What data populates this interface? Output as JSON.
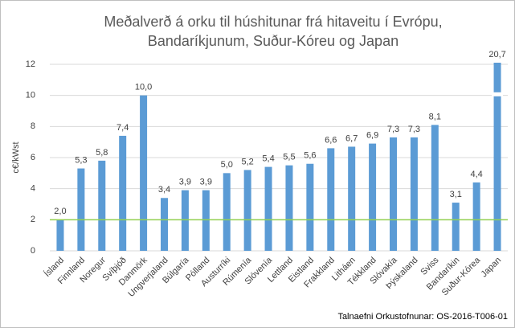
{
  "chart_data": {
    "type": "bar",
    "title": [
      "Meðalverð á orku til húshitunar frá hitaveitu í Evrópu,",
      "Bandaríkjunum, Suður-Kóreu og Japan"
    ],
    "y_label": "c€/kWst",
    "source": "Talnaefni Orkustofnunar: OS-2016-T006-01",
    "categories": [
      "Ísland",
      "Finnland",
      "Noregur",
      "Svíþjóð",
      "Danmörk",
      "Ungverjaland",
      "Búlgaría",
      "Pólland",
      "Austurríki",
      "Rúmenía",
      "Slóvenía",
      "Lettland",
      "Eistland",
      "Frakkland",
      "Litháen",
      "Tékkland",
      "Slóvakía",
      "Þýskaland",
      "Sviss",
      "Bandaríkin",
      "Suður-Kórea",
      "Japan"
    ],
    "values": [
      2.0,
      5.3,
      5.8,
      7.4,
      10.0,
      3.4,
      3.9,
      3.9,
      5.0,
      5.2,
      5.4,
      5.5,
      5.6,
      6.6,
      6.7,
      6.9,
      7.3,
      7.3,
      8.1,
      3.1,
      4.4,
      20.7
    ],
    "value_labels": [
      "2,0",
      "5,3",
      "5,8",
      "7,4",
      "10,0",
      "3,4",
      "3,9",
      "3,9",
      "5,0",
      "5,2",
      "5,4",
      "5,5",
      "5,6",
      "6,6",
      "6,7",
      "6,9",
      "7,3",
      "7,3",
      "8,1",
      "3,1",
      "4,4",
      "20,7"
    ],
    "color": "#5b9bd5",
    "reference_line": {
      "value": 2,
      "color": "#92d050"
    },
    "ylim": [
      0,
      12
    ],
    "yticks": [
      0,
      2,
      4,
      6,
      8,
      10,
      12
    ],
    "grid": true
  }
}
